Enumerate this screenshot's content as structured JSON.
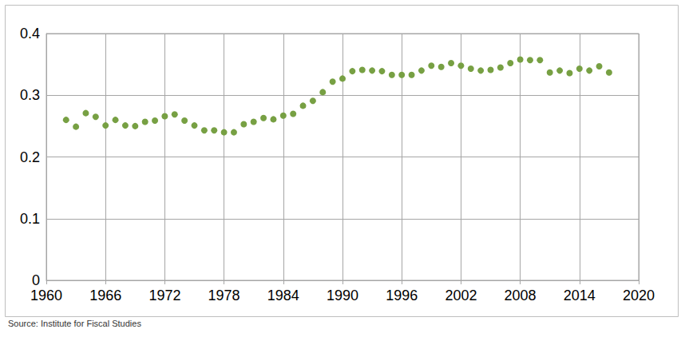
{
  "chart_data": {
    "type": "scatter",
    "annotations": [
      "Source: Institute for Fiscal Studies"
    ],
    "x": [
      1962,
      1963,
      1964,
      1965,
      1966,
      1967,
      1968,
      1969,
      1970,
      1971,
      1972,
      1973,
      1974,
      1975,
      1976,
      1977,
      1978,
      1979,
      1980,
      1981,
      1982,
      1983,
      1984,
      1985,
      1986,
      1987,
      1988,
      1989,
      1990,
      1991,
      1992,
      1993,
      1994,
      1995,
      1996,
      1997,
      1998,
      1999,
      2000,
      2001,
      2002,
      2003,
      2004,
      2005,
      2006,
      2007,
      2008,
      2009,
      2010,
      2011,
      2012,
      2013,
      2014,
      2015,
      2016,
      2017
    ],
    "values": [
      0.26,
      0.249,
      0.271,
      0.265,
      0.251,
      0.26,
      0.251,
      0.25,
      0.257,
      0.259,
      0.266,
      0.269,
      0.259,
      0.251,
      0.243,
      0.243,
      0.24,
      0.24,
      0.253,
      0.257,
      0.263,
      0.261,
      0.267,
      0.27,
      0.283,
      0.291,
      0.305,
      0.322,
      0.327,
      0.339,
      0.341,
      0.34,
      0.339,
      0.333,
      0.333,
      0.333,
      0.34,
      0.348,
      0.346,
      0.352,
      0.348,
      0.343,
      0.34,
      0.341,
      0.345,
      0.352,
      0.358,
      0.357,
      0.357,
      0.337,
      0.34,
      0.336,
      0.343,
      0.34,
      0.347,
      0.337
    ],
    "color": "#77a043",
    "marker": "circle",
    "xlim": [
      1960,
      2020
    ],
    "xticks": [
      1960,
      1966,
      1972,
      1978,
      1984,
      1990,
      1996,
      2002,
      2008,
      2014,
      2020
    ],
    "ylim": [
      0,
      0.4
    ],
    "yticks": [
      0,
      0.1,
      0.2,
      0.3,
      0.4
    ],
    "grid": true
  }
}
